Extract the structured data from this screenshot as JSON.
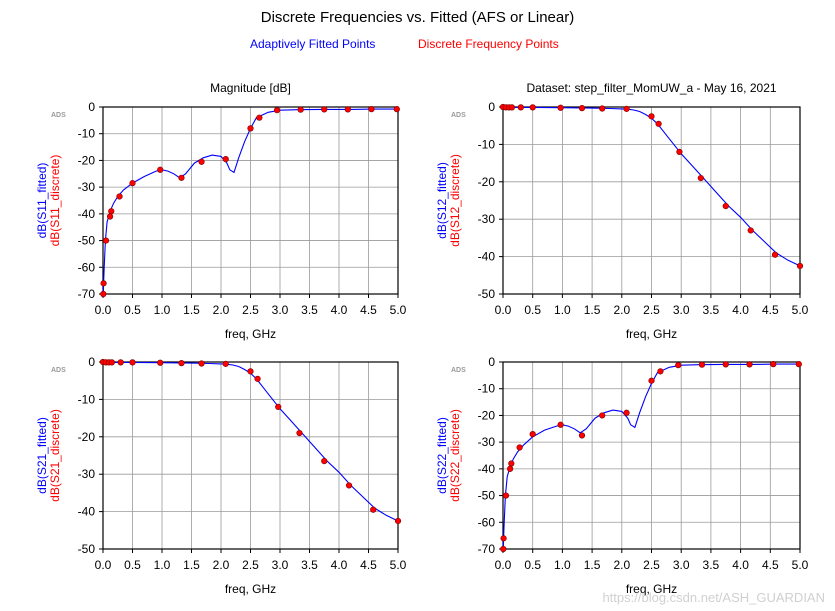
{
  "title": "Discrete Frequencies vs. Fitted (AFS or Linear)",
  "legend": {
    "fitted_label": "Adaptively Fitted Points",
    "discrete_label": "Discrete Frequency Points",
    "fitted_color": "#0000ff",
    "discrete_color": "#ff0000"
  },
  "watermark": "https://blog.csdn.net/ASH_GUARDIAN",
  "chart_data": [
    {
      "type": "line",
      "title": "Magnitude [dB]",
      "tag": "ADS",
      "xlabel": "freq, GHz",
      "ylabels": [
        "dB(S11_fitted)",
        "dB(S11_discrete)"
      ],
      "xlim": [
        0,
        5
      ],
      "ylim": [
        -70,
        0
      ],
      "xticks": [
        0.0,
        0.5,
        1.0,
        1.5,
        2.0,
        2.5,
        3.0,
        3.5,
        4.0,
        4.5,
        5.0
      ],
      "yticks": [
        0,
        -10,
        -20,
        -30,
        -40,
        -50,
        -60,
        -70
      ],
      "grid": true,
      "series": [
        {
          "name": "dB(S11_fitted)",
          "style": "line",
          "x": [
            0.005,
            0.01,
            0.02,
            0.04,
            0.07,
            0.12,
            0.18,
            0.25,
            0.35,
            0.5,
            0.7,
            0.9,
            1.0,
            1.1,
            1.2,
            1.3,
            1.4,
            1.55,
            1.7,
            1.85,
            2.0,
            2.1,
            2.15,
            2.22,
            2.3,
            2.4,
            2.5,
            2.6,
            2.8,
            3.0,
            3.3,
            3.7,
            4.2,
            4.6,
            5.0
          ],
          "y": [
            -70,
            -66,
            -60,
            -50,
            -43,
            -39,
            -36,
            -33.5,
            -31,
            -28.5,
            -26,
            -24,
            -23.5,
            -24,
            -25,
            -26.5,
            -25,
            -21,
            -19,
            -18,
            -18.5,
            -21,
            -23.5,
            -24.5,
            -19,
            -13,
            -8,
            -4,
            -2,
            -1.2,
            -1,
            -0.9,
            -0.9,
            -0.8,
            -0.8
          ]
        },
        {
          "name": "dB(S11_discrete)",
          "style": "markers",
          "x": [
            0.005,
            0.01,
            0.05,
            0.12,
            0.14,
            0.28,
            0.5,
            0.97,
            1.33,
            1.67,
            2.08,
            2.5,
            2.65,
            2.95,
            3.35,
            3.75,
            4.15,
            4.55,
            4.98
          ],
          "y": [
            -70,
            -66,
            -50,
            -41,
            -39,
            -33.5,
            -28.5,
            -23.5,
            -26.5,
            -20.5,
            -19.5,
            -8,
            -4,
            -1.2,
            -1,
            -0.9,
            -0.9,
            -0.8,
            -0.8
          ]
        }
      ]
    },
    {
      "type": "line",
      "title": "Dataset: step_filter_MomUW_a - May 16, 2021",
      "tag": "ADS",
      "xlabel": "freq, GHz",
      "ylabels": [
        "dB(S12_fitted)",
        "dB(S12_discrete)"
      ],
      "xlim": [
        0,
        5
      ],
      "ylim": [
        -50,
        0
      ],
      "xticks": [
        0.0,
        0.5,
        1.0,
        1.5,
        2.0,
        2.5,
        3.0,
        3.5,
        4.0,
        4.5,
        5.0
      ],
      "yticks": [
        0,
        -10,
        -20,
        -30,
        -40,
        -50
      ],
      "grid": true,
      "series": [
        {
          "name": "dB(S12_fitted)",
          "style": "line",
          "x": [
            0.0,
            0.2,
            0.5,
            1.0,
            1.5,
            1.8,
            2.0,
            2.1,
            2.2,
            2.3,
            2.4,
            2.5,
            2.6,
            2.7,
            2.8,
            2.9,
            3.0,
            3.2,
            3.4,
            3.6,
            3.8,
            4.0,
            4.2,
            4.4,
            4.6,
            4.8,
            5.0
          ],
          "y": [
            0,
            -0.1,
            -0.1,
            -0.2,
            -0.3,
            -0.4,
            -0.5,
            -0.6,
            -0.8,
            -1.2,
            -2,
            -3,
            -4.5,
            -6.5,
            -8.5,
            -10.5,
            -12.5,
            -16,
            -19.5,
            -23,
            -26.5,
            -29.5,
            -33,
            -36,
            -39,
            -41,
            -42.5
          ]
        },
        {
          "name": "dB(S12_discrete)",
          "style": "markers",
          "x": [
            0.0,
            0.05,
            0.1,
            0.15,
            0.3,
            0.5,
            0.97,
            1.33,
            1.67,
            2.08,
            2.5,
            2.62,
            2.97,
            3.33,
            3.75,
            4.17,
            4.58,
            5.0
          ],
          "y": [
            0,
            -0.1,
            -0.1,
            -0.1,
            -0.1,
            -0.1,
            -0.2,
            -0.3,
            -0.4,
            -0.5,
            -2.5,
            -4.5,
            -12,
            -19,
            -26.5,
            -33,
            -39.5,
            -42.5
          ]
        }
      ]
    },
    {
      "type": "line",
      "title": "",
      "tag": "ADS",
      "xlabel": "freq, GHz",
      "ylabels": [
        "dB(S21_fitted)",
        "dB(S21_discrete)"
      ],
      "xlim": [
        0,
        5
      ],
      "ylim": [
        -50,
        0
      ],
      "xticks": [
        0.0,
        0.5,
        1.0,
        1.5,
        2.0,
        2.5,
        3.0,
        3.5,
        4.0,
        4.5,
        5.0
      ],
      "yticks": [
        0,
        -10,
        -20,
        -30,
        -40,
        -50
      ],
      "grid": true,
      "series": [
        {
          "name": "dB(S21_fitted)",
          "style": "line",
          "x": [
            0.0,
            0.2,
            0.5,
            1.0,
            1.5,
            1.8,
            2.0,
            2.1,
            2.2,
            2.3,
            2.4,
            2.5,
            2.6,
            2.7,
            2.8,
            2.9,
            3.0,
            3.2,
            3.4,
            3.6,
            3.8,
            4.0,
            4.2,
            4.4,
            4.6,
            4.8,
            5.0
          ],
          "y": [
            0,
            -0.1,
            -0.1,
            -0.2,
            -0.3,
            -0.4,
            -0.5,
            -0.6,
            -0.8,
            -1.2,
            -2,
            -3,
            -4.5,
            -6.5,
            -8.5,
            -10.5,
            -12.5,
            -16,
            -19.5,
            -23,
            -26.5,
            -29.5,
            -33,
            -36,
            -39,
            -41,
            -42.5
          ]
        },
        {
          "name": "dB(S21_discrete)",
          "style": "markers",
          "x": [
            0.0,
            0.05,
            0.1,
            0.15,
            0.3,
            0.5,
            0.97,
            1.33,
            1.67,
            2.08,
            2.5,
            2.62,
            2.97,
            3.33,
            3.75,
            4.17,
            4.58,
            5.0
          ],
          "y": [
            0,
            -0.1,
            -0.1,
            -0.1,
            -0.1,
            -0.1,
            -0.2,
            -0.3,
            -0.4,
            -0.5,
            -2.5,
            -4.5,
            -12,
            -19,
            -26.5,
            -33,
            -39.5,
            -42.5
          ]
        }
      ]
    },
    {
      "type": "line",
      "title": "",
      "tag": "ADS",
      "xlabel": "freq, GHz",
      "ylabels": [
        "dB(S22_fitted)",
        "dB(S22_discrete)"
      ],
      "xlim": [
        0,
        5
      ],
      "ylim": [
        -70,
        0
      ],
      "xticks": [
        0.0,
        0.5,
        1.0,
        1.5,
        2.0,
        2.5,
        3.0,
        3.5,
        4.0,
        4.5,
        5.0
      ],
      "yticks": [
        0,
        -10,
        -20,
        -30,
        -40,
        -50,
        -60,
        -70
      ],
      "grid": true,
      "series": [
        {
          "name": "dB(S22_fitted)",
          "style": "line",
          "x": [
            0.005,
            0.01,
            0.02,
            0.04,
            0.07,
            0.12,
            0.18,
            0.25,
            0.35,
            0.5,
            0.7,
            0.9,
            1.0,
            1.1,
            1.2,
            1.3,
            1.4,
            1.55,
            1.7,
            1.85,
            2.0,
            2.1,
            2.15,
            2.22,
            2.3,
            2.4,
            2.5,
            2.6,
            2.8,
            3.0,
            3.3,
            3.7,
            4.2,
            4.6,
            5.0
          ],
          "y": [
            -70,
            -66,
            -60,
            -50,
            -43,
            -39,
            -36,
            -33.5,
            -31,
            -28,
            -25.5,
            -24,
            -23.5,
            -24,
            -25,
            -26.5,
            -25,
            -21,
            -19,
            -18,
            -18.5,
            -21,
            -23.5,
            -24.5,
            -19,
            -13,
            -8,
            -4,
            -2,
            -1.2,
            -1,
            -0.9,
            -0.9,
            -0.8,
            -0.8
          ]
        },
        {
          "name": "dB(S22_discrete)",
          "style": "markers",
          "x": [
            0.005,
            0.01,
            0.05,
            0.12,
            0.14,
            0.28,
            0.5,
            0.97,
            1.33,
            1.67,
            2.08,
            2.5,
            2.65,
            2.95,
            3.35,
            3.75,
            4.15,
            4.55,
            4.98
          ],
          "y": [
            -70,
            -66,
            -50,
            -40,
            -38,
            -32,
            -27,
            -23.5,
            -27.5,
            -20,
            -19,
            -7,
            -3.5,
            -1.2,
            -1,
            -0.9,
            -0.9,
            -0.8,
            -0.8
          ]
        }
      ]
    }
  ]
}
